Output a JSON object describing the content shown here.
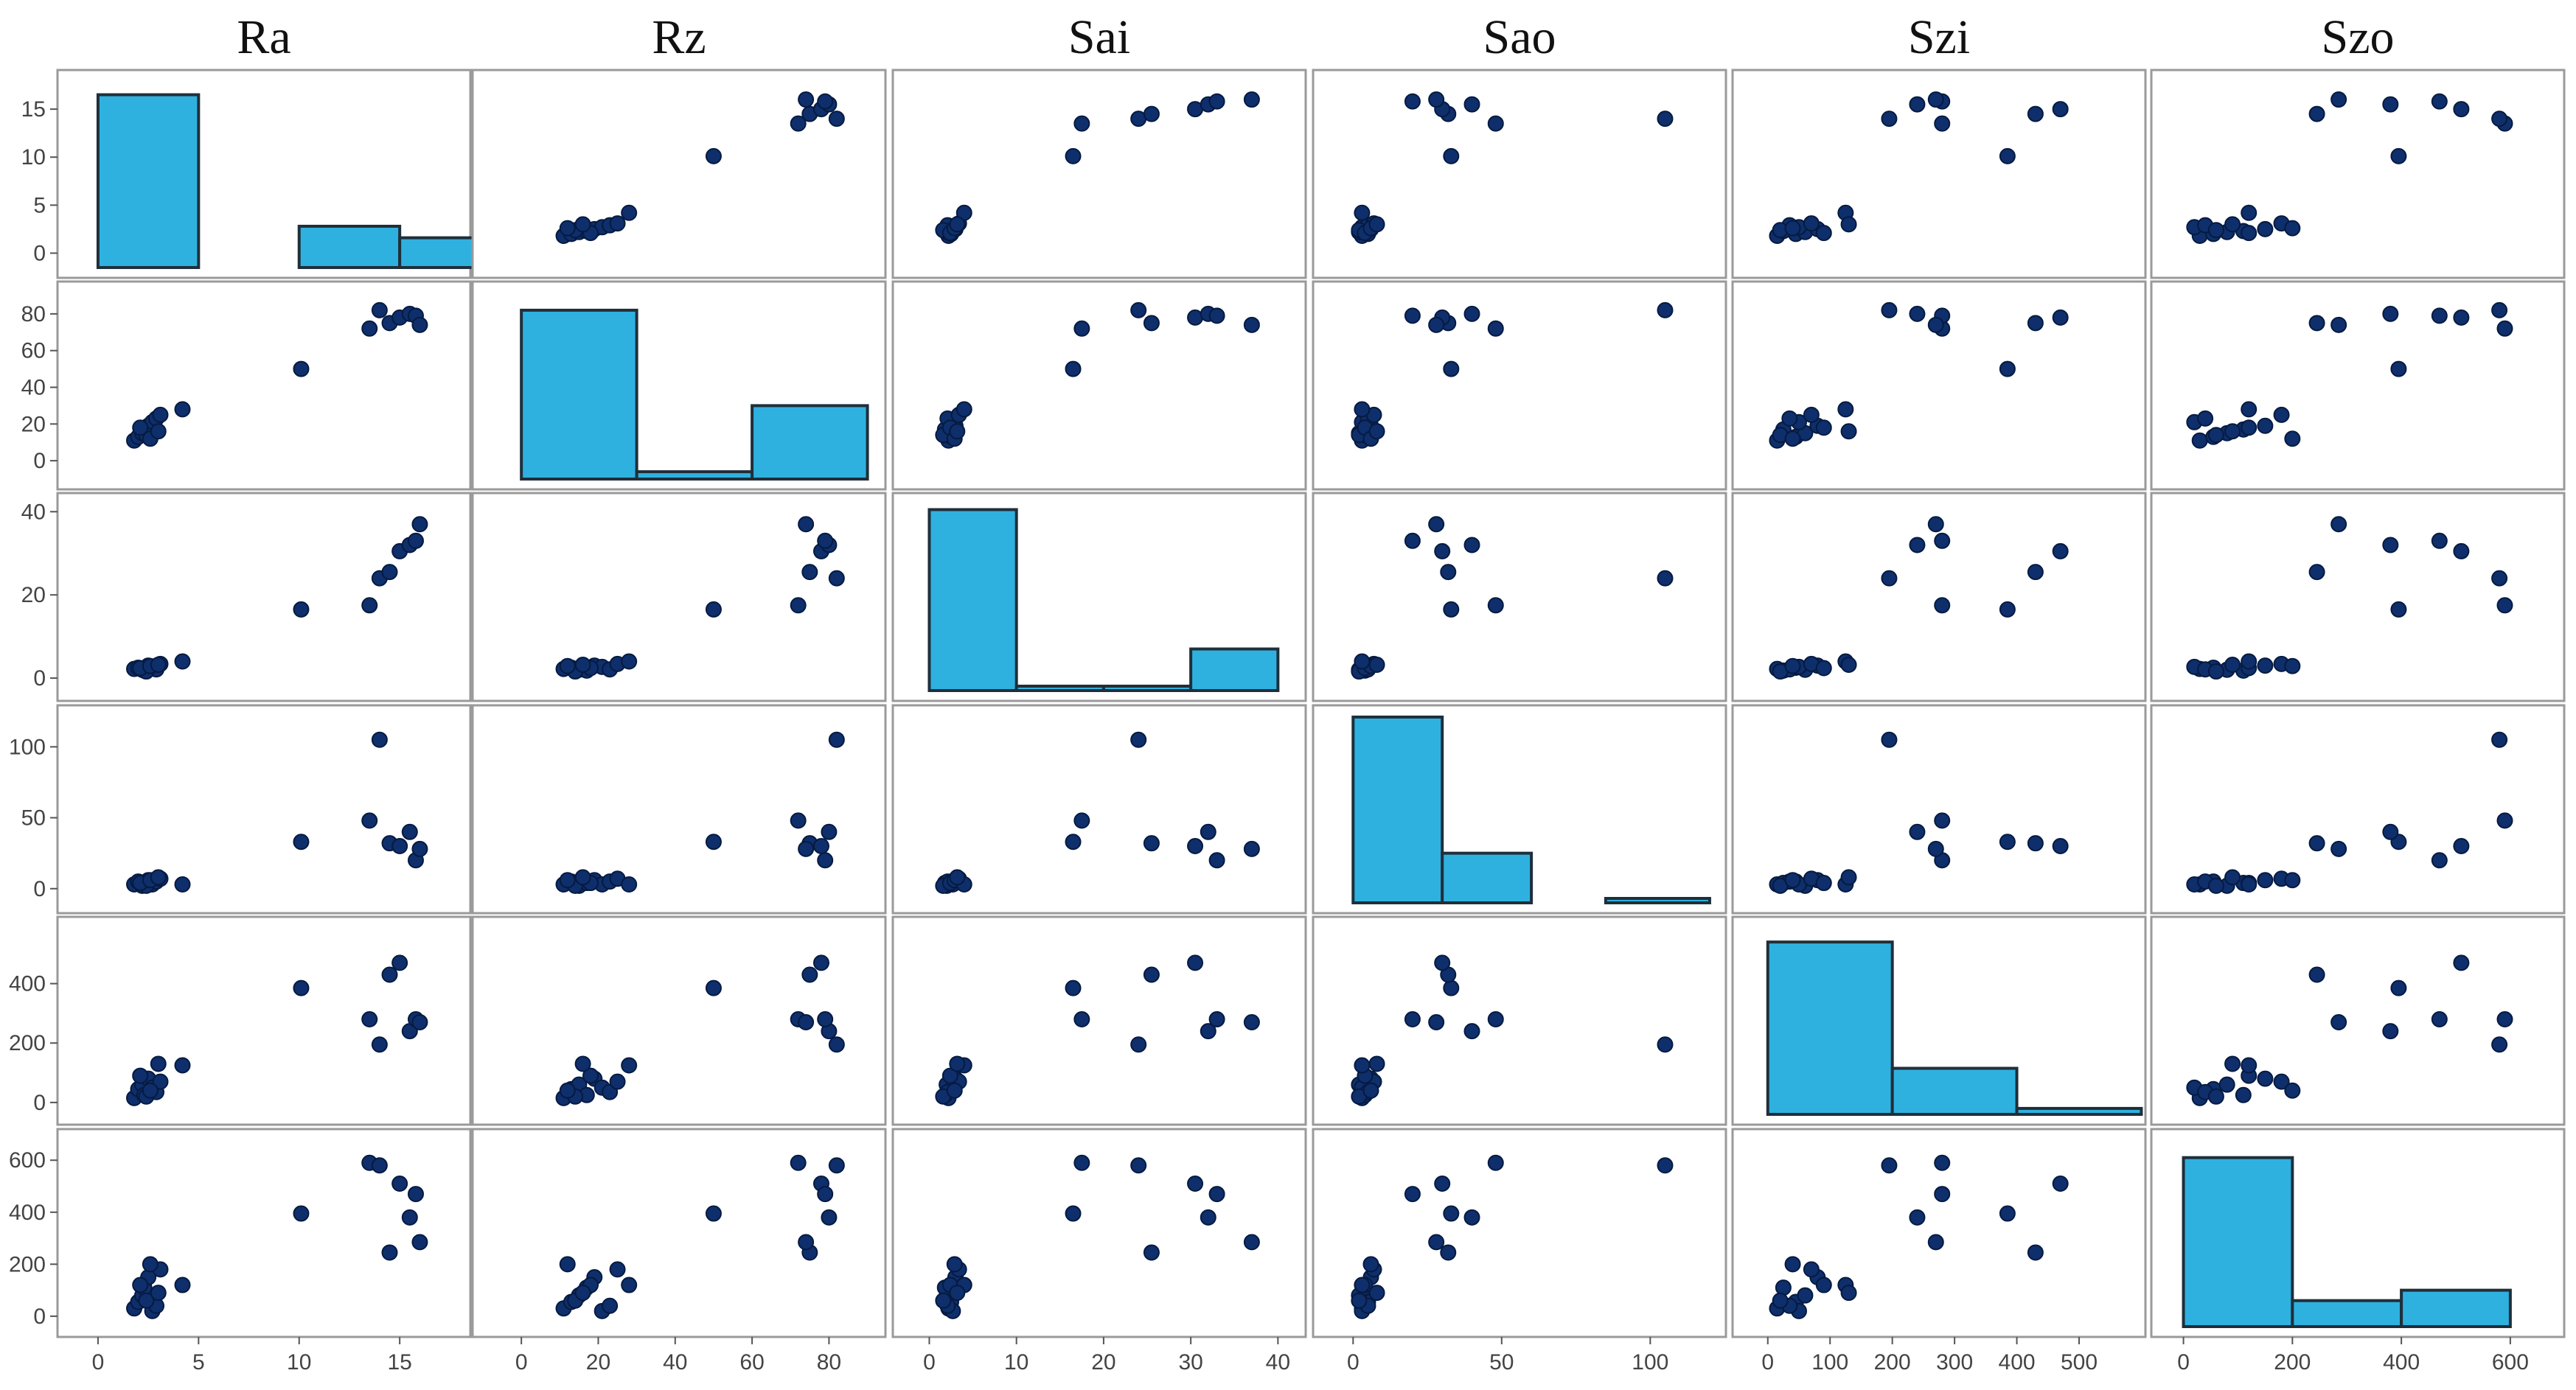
{
  "chart_data": {
    "type": "scatter",
    "variables": [
      "Ra",
      "Rz",
      "Sai",
      "Sao",
      "Szi",
      "Szo"
    ],
    "axes": [
      {
        "name": "Ra",
        "range": [
          -1.5,
          18
        ],
        "ticks": [
          0,
          5,
          10,
          15
        ],
        "tick_labels": [
          "0",
          "5",
          "10",
          "15"
        ]
      },
      {
        "name": "Rz",
        "range": [
          -10,
          92
        ],
        "ticks": [
          0,
          20,
          40,
          60,
          80
        ],
        "tick_labels": [
          "0",
          "20",
          "40",
          "60",
          "80"
        ]
      },
      {
        "name": "Sai",
        "range": [
          -3,
          42
        ],
        "ticks": [
          0,
          10,
          20,
          30,
          40
        ],
        "tick_labels": [
          "0",
          "10",
          "20",
          "30",
          "40"
        ]
      },
      {
        "name": "Sao",
        "range": [
          -10,
          122
        ],
        "ticks": [
          0,
          50,
          100
        ],
        "tick_labels": [
          "0",
          "50",
          "100"
        ]
      },
      {
        "name": "Szi",
        "range": [
          -40,
          590
        ],
        "ticks": [
          0,
          100,
          200,
          300,
          400,
          500
        ],
        "tick_labels": [
          "0",
          "100",
          "200",
          "300",
          "400",
          "500"
        ]
      },
      {
        "name": "Szo",
        "range": [
          -40,
          680
        ],
        "ticks": [
          0,
          200,
          400,
          600
        ],
        "tick_labels": [
          "0",
          "200",
          "400",
          "600"
        ]
      }
    ],
    "y_ticks": [
      {
        "ticks": [
          0,
          5,
          10,
          15
        ],
        "tick_labels": [
          "0",
          "5",
          "10",
          "15"
        ]
      },
      {
        "ticks": [
          0,
          20,
          40,
          60,
          80
        ],
        "tick_labels": [
          "0",
          "20",
          "40",
          "60",
          "80"
        ]
      },
      {
        "ticks": [
          0,
          20,
          40
        ],
        "tick_labels": [
          "0",
          "20",
          "40"
        ]
      },
      {
        "ticks": [
          0,
          50,
          100
        ],
        "tick_labels": [
          "0",
          "50",
          "100"
        ]
      },
      {
        "ticks": [
          0,
          200,
          400
        ],
        "tick_labels": [
          "0",
          "200",
          "400"
        ]
      },
      {
        "ticks": [
          0,
          200,
          400,
          600
        ],
        "tick_labels": [
          "0",
          "200",
          "400",
          "600"
        ]
      }
    ],
    "histograms": [
      {
        "variable": "Ra",
        "bins": [
          [
            0,
            5,
            16.5
          ],
          [
            10,
            15,
            2.8
          ],
          [
            15,
            20,
            1.6
          ]
        ]
      },
      {
        "variable": "Rz",
        "bins": [
          [
            0,
            30,
            82
          ],
          [
            30,
            60,
            -6
          ],
          [
            60,
            90,
            30
          ]
        ]
      },
      {
        "variable": "Sai",
        "bins": [
          [
            0,
            10,
            40.5
          ],
          [
            10,
            20,
            -2
          ],
          [
            20,
            30,
            -2
          ],
          [
            30,
            40,
            7
          ]
        ]
      },
      {
        "variable": "Sao",
        "bins": [
          [
            0,
            30,
            121
          ],
          [
            30,
            60,
            25
          ],
          [
            85,
            120,
            -10
          ]
        ]
      },
      {
        "variable": "Szi",
        "bins": [
          [
            0,
            200,
            540
          ],
          [
            200,
            400,
            115
          ],
          [
            400,
            600,
            -20
          ]
        ]
      },
      {
        "variable": "Szo",
        "bins": [
          [
            0,
            200,
            610
          ],
          [
            200,
            400,
            60
          ],
          [
            400,
            600,
            100
          ]
        ]
      }
    ],
    "observations": [
      {
        "Ra": 1.8,
        "Rz": 11,
        "Sai": 2.2,
        "Sao": 3,
        "Szi": 15,
        "Szo": 30
      },
      {
        "Ra": 2.0,
        "Rz": 13,
        "Sai": 2.5,
        "Sao": 5,
        "Szi": 45,
        "Szo": 55
      },
      {
        "Ra": 2.2,
        "Rz": 15,
        "Sai": 2.0,
        "Sao": 2,
        "Szi": 60,
        "Szo": 80
      },
      {
        "Ra": 2.3,
        "Rz": 17,
        "Sai": 1.8,
        "Sao": 4,
        "Szi": 25,
        "Szo": 110
      },
      {
        "Ra": 2.5,
        "Rz": 19,
        "Sai": 3.0,
        "Sao": 6,
        "Szi": 80,
        "Szo": 150
      },
      {
        "Ra": 2.7,
        "Rz": 21,
        "Sai": 2.7,
        "Sao": 3,
        "Szi": 50,
        "Szo": 20
      },
      {
        "Ra": 2.9,
        "Rz": 23,
        "Sai": 2.1,
        "Sao": 5,
        "Szi": 35,
        "Szo": 40
      },
      {
        "Ra": 3.1,
        "Rz": 25,
        "Sai": 3.4,
        "Sao": 7,
        "Szi": 70,
        "Szo": 180
      },
      {
        "Ra": 2.4,
        "Rz": 14,
        "Sai": 1.6,
        "Sao": 2,
        "Szi": 20,
        "Szo": 60
      },
      {
        "Ra": 2.1,
        "Rz": 18,
        "Sai": 2.4,
        "Sao": 4,
        "Szi": 90,
        "Szo": 120
      },
      {
        "Ra": 2.6,
        "Rz": 12,
        "Sai": 2.9,
        "Sao": 6,
        "Szi": 40,
        "Szo": 200
      },
      {
        "Ra": 4.2,
        "Rz": 28,
        "Sai": 4.0,
        "Sao": 3,
        "Szi": 125,
        "Szo": 120
      },
      {
        "Ra": 3.0,
        "Rz": 16,
        "Sai": 3.2,
        "Sao": 8,
        "Szi": 130,
        "Szo": 90
      },
      {
        "Ra": 10.1,
        "Rz": 50,
        "Sai": 16.5,
        "Sao": 33,
        "Szi": 385,
        "Szo": 395
      },
      {
        "Ra": 13.5,
        "Rz": 72,
        "Sai": 17.5,
        "Sao": 48,
        "Szi": 280,
        "Szo": 590
      },
      {
        "Ra": 14.0,
        "Rz": 82,
        "Sai": 24.0,
        "Sao": 105,
        "Szi": 195,
        "Szo": 580
      },
      {
        "Ra": 14.5,
        "Rz": 75,
        "Sai": 25.5,
        "Sao": 32,
        "Szi": 430,
        "Szo": 245
      },
      {
        "Ra": 15.0,
        "Rz": 78,
        "Sai": 30.5,
        "Sao": 30,
        "Szi": 470,
        "Szo": 510
      },
      {
        "Ra": 15.5,
        "Rz": 80,
        "Sai": 32.0,
        "Sao": 40,
        "Szi": 240,
        "Szo": 380
      },
      {
        "Ra": 15.8,
        "Rz": 79,
        "Sai": 33.0,
        "Sao": 20,
        "Szi": 280,
        "Szo": 470
      },
      {
        "Ra": 16.0,
        "Rz": 74,
        "Sai": 37.0,
        "Sao": 28,
        "Szi": 270,
        "Szo": 285
      }
    ],
    "point_color": "#0e2f6b",
    "bar_color": "#2fb1e0"
  }
}
